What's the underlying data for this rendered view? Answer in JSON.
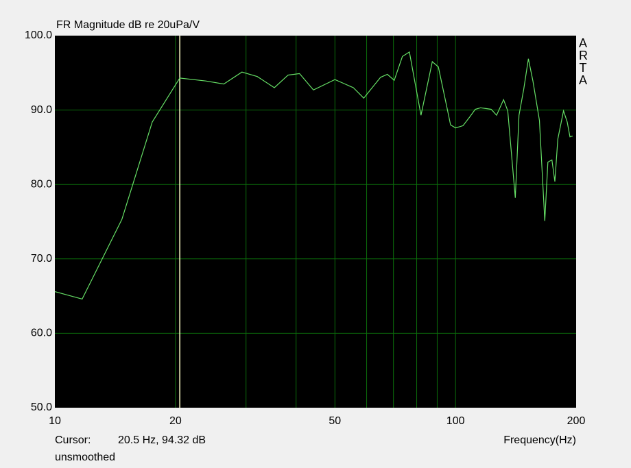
{
  "chart_data": {
    "type": "line",
    "title": "FR Magnitude dB re 20uPa/V",
    "xlabel": "Frequency(Hz)",
    "log_x": true,
    "xlim": [
      10,
      200
    ],
    "xticks": [
      10,
      20,
      50,
      100,
      200
    ],
    "xgrid": [
      20,
      30,
      40,
      50,
      60,
      70,
      80,
      90,
      100
    ],
    "ylim": [
      50,
      100
    ],
    "yticks": [
      {
        "value": 50,
        "label": "50.0"
      },
      {
        "value": 60,
        "label": "60.0"
      },
      {
        "value": 70,
        "label": "70.0"
      },
      {
        "value": 80,
        "label": "80.0"
      },
      {
        "value": 90,
        "label": "90.0"
      },
      {
        "value": 100,
        "label": "100.0"
      }
    ],
    "ygrid": [
      60,
      70,
      80,
      90
    ],
    "watermark": "ARTA",
    "cursor_label": "Cursor:",
    "cursor_x": 20.5,
    "cursor_text": "20.5 Hz, 94.32 dB",
    "smoothing": "unsmoothed",
    "x": [
      10,
      11.7,
      14.7,
      17.5,
      20.5,
      23.8,
      26.4,
      29.3,
      32,
      35.3,
      38.2,
      40.8,
      44.2,
      50,
      55.6,
      59,
      65,
      67.6,
      70.3,
      73.7,
      76.7,
      82,
      87.5,
      90.6,
      95.4,
      97.2,
      100,
      104.4,
      108.6,
      112,
      115.5,
      119,
      122.7,
      126.6,
      131.8,
      135,
      141,
      144,
      148,
      152,
      156,
      162,
      167,
      170,
      174,
      177,
      180,
      186,
      190,
      193,
      196
    ],
    "series": [
      {
        "name": "FR",
        "color": "#66e066",
        "values": [
          65.6,
          64.6,
          75.3,
          88.4,
          94.3,
          93.9,
          93.5,
          95.1,
          94.5,
          93.0,
          94.7,
          94.9,
          92.7,
          94.1,
          93.0,
          91.6,
          94.4,
          94.8,
          94.0,
          97.2,
          97.8,
          89.3,
          96.5,
          95.8,
          90.1,
          88.0,
          87.6,
          87.9,
          89.1,
          90.1,
          90.3,
          90.2,
          90.1,
          89.3,
          91.4,
          89.9,
          78.2,
          89.3,
          92.8,
          96.9,
          93.9,
          88.6,
          75.1,
          83.0,
          83.3,
          80.4,
          86.1,
          89.9,
          88.4,
          86.4,
          86.5
        ]
      }
    ]
  }
}
